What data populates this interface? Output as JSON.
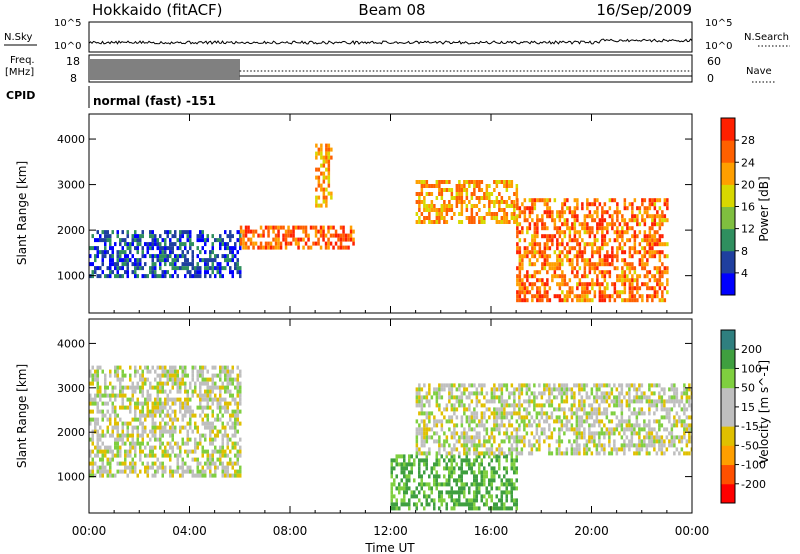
{
  "header": {
    "radar": "Hokkaido (fitACF)",
    "beam": "Beam 08",
    "date": "16/Sep/2009"
  },
  "top_panels": {
    "nsky_label": "N.Sky",
    "nsky_ticks": [
      "10^5",
      "10^0"
    ],
    "nsearch_label": "N.Search",
    "nsearch_ticks": [
      "10^5",
      "10^0"
    ],
    "freq_label_1": "Freq.",
    "freq_label_2": "[MHz]",
    "freq_ticks": [
      "18",
      "8"
    ],
    "nave_label": "Nave",
    "nave_ticks": [
      "60",
      "0"
    ],
    "cpid_label": "CPID",
    "cpid_text": "normal (fast) -151"
  },
  "colors": {
    "power_scale": [
      "#0000ff",
      "#1f3f9f",
      "#2f8f5f",
      "#7fbf3f",
      "#d8d800",
      "#ff9f00",
      "#ff6000",
      "#ff2000",
      "#ff0000"
    ],
    "velocity_scale": [
      "#ff0000",
      "#ff5000",
      "#ff9f00",
      "#e0c000",
      "#bfbfbf",
      "#bfbfbf",
      "#7fcf3f",
      "#3f9f3f",
      "#2f7f7f",
      "#0000ff"
    ]
  },
  "chart_data": [
    {
      "type": "heatmap",
      "title": "",
      "ylabel": "Slant Range [km]",
      "xlabel": "",
      "x_ticks": [
        "00:00",
        "04:00",
        "08:00",
        "12:00",
        "16:00",
        "20:00",
        "00:00"
      ],
      "y_ticks": [
        "1000",
        "2000",
        "3000",
        "4000"
      ],
      "xlim_hours": [
        0,
        24
      ],
      "ylim_km": [
        180,
        4550
      ],
      "colorbar": {
        "label": "Power [dB]",
        "ticks": [
          "4",
          "8",
          "12",
          "16",
          "20",
          "24",
          "28"
        ],
        "range": [
          0,
          32
        ]
      },
      "echo_regions": [
        {
          "t0": 0,
          "t1": 6,
          "r0": 1000,
          "r1": 2000,
          "value": 6
        },
        {
          "t0": 6,
          "t1": 10.5,
          "r0": 1600,
          "r1": 2100,
          "value": 26
        },
        {
          "t0": 9,
          "t1": 9.6,
          "r0": 2500,
          "r1": 3900,
          "value": 22
        },
        {
          "t0": 13,
          "t1": 17,
          "r0": 2200,
          "r1": 3100,
          "value": 22
        },
        {
          "t0": 17,
          "t1": 23,
          "r0": 500,
          "r1": 2700,
          "value": 25
        }
      ]
    },
    {
      "type": "heatmap",
      "title": "",
      "ylabel": "Slant Range [km]",
      "xlabel": "Time UT",
      "x_ticks": [
        "00:00",
        "04:00",
        "08:00",
        "12:00",
        "16:00",
        "20:00",
        "00:00"
      ],
      "y_ticks": [
        "1000",
        "2000",
        "3000",
        "4000"
      ],
      "xlim_hours": [
        0,
        24
      ],
      "ylim_km": [
        180,
        4550
      ],
      "colorbar": {
        "label": "Velocity [m s^-1]",
        "ticks": [
          "200",
          "100",
          "50",
          "15",
          "-15",
          "-50",
          "-100",
          "-200"
        ],
        "range": [
          -250,
          250
        ]
      },
      "echo_regions": [
        {
          "t0": 0,
          "t1": 6,
          "r0": 1000,
          "r1": 3500,
          "value": 0
        },
        {
          "t0": 12,
          "t1": 17,
          "r0": 300,
          "r1": 1500,
          "value": 60
        },
        {
          "t0": 13,
          "t1": 24,
          "r0": 1500,
          "r1": 3100,
          "value": 0
        }
      ]
    }
  ]
}
